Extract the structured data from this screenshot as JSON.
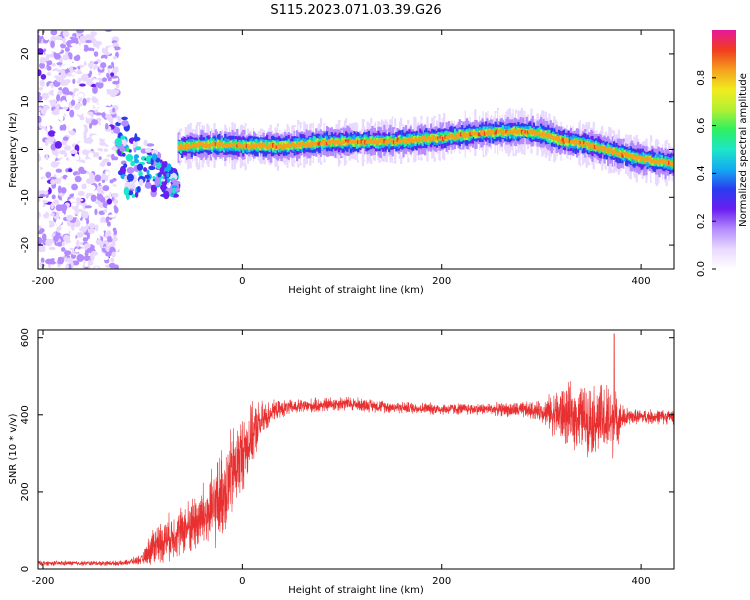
{
  "title": "S115.2023.071.03.39.G26",
  "colors": {
    "snr_line": "#e83030",
    "colormap": [
      "#ffffff",
      "#e9d9ff",
      "#b48cff",
      "#6a1ef0",
      "#2a3cf0",
      "#14aaf2",
      "#1ee6c8",
      "#2ef060",
      "#b4f032",
      "#f0ec1e",
      "#f5a01e",
      "#f03c1e",
      "#e8189a"
    ]
  },
  "chart_data": [
    {
      "type": "heatmap",
      "xlabel": "Height of straight line (km)",
      "ylabel": "Frequency (Hz)",
      "xlim": [
        -205,
        433
      ],
      "ylim": [
        -25,
        25
      ],
      "xticks": [
        -200,
        0,
        200,
        400
      ],
      "yticks": [
        -20,
        -10,
        0,
        10,
        20
      ],
      "colorbar": {
        "label": "Normalized spectral amplitude",
        "range": [
          0,
          1
        ],
        "ticks": [
          0.0,
          0.2,
          0.4,
          0.6,
          0.8
        ]
      },
      "ridge": {
        "x": [
          -65,
          -50,
          -30,
          0,
          40,
          80,
          120,
          160,
          200,
          240,
          280,
          300,
          320,
          340,
          360,
          380,
          400,
          433
        ],
        "freq": [
          0.5,
          0.8,
          1,
          0.8,
          0.7,
          1.5,
          1.6,
          1.8,
          2.5,
          3.5,
          3.8,
          3.3,
          1.8,
          1.3,
          0.2,
          -1.0,
          -2.0,
          -3.0
        ]
      },
      "noise_region": {
        "x": [
          -205,
          -125
        ],
        "freq": [
          -25,
          25
        ]
      }
    },
    {
      "type": "line",
      "xlabel": "Height of straight line (km)",
      "ylabel": "SNR (10 * v/v)",
      "xlim": [
        -205,
        433
      ],
      "ylim": [
        0,
        620
      ],
      "xticks": [
        -200,
        0,
        200,
        400
      ],
      "yticks": [
        0,
        200,
        400,
        600
      ],
      "envelope": {
        "x": [
          -205,
          -120,
          -100,
          -90,
          -60,
          -30,
          -15,
          0,
          15,
          30,
          50,
          80,
          100,
          150,
          200,
          250,
          300,
          320,
          350,
          370,
          380,
          390,
          433
        ],
        "y": [
          15,
          15,
          25,
          60,
          100,
          150,
          220,
          300,
          370,
          410,
          420,
          425,
          430,
          420,
          415,
          415,
          410,
          400,
          390,
          380,
          390,
          395,
          395
        ],
        "noise": [
          5,
          5,
          10,
          40,
          50,
          80,
          100,
          80,
          50,
          20,
          15,
          15,
          15,
          12,
          12,
          12,
          20,
          60,
          70,
          80,
          30,
          15,
          15
        ]
      },
      "spike": {
        "x": 373,
        "y": 610
      }
    }
  ]
}
